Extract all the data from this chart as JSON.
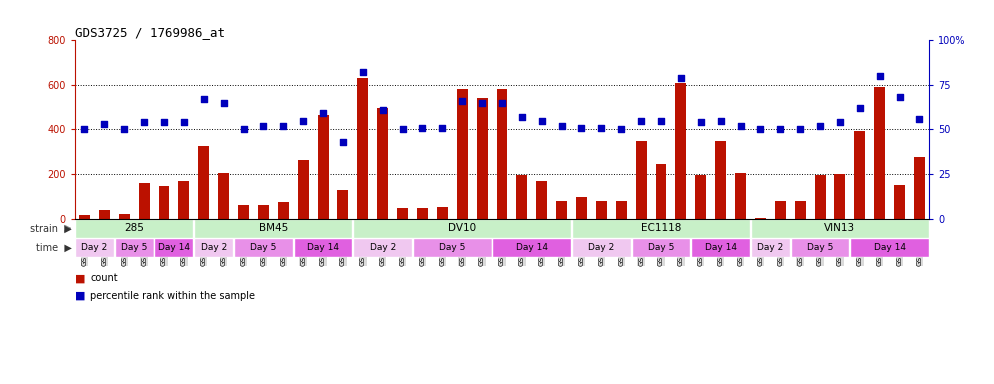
{
  "title": "GDS3725 / 1769986_at",
  "samples": [
    "GSM291115",
    "GSM291116",
    "GSM291117",
    "GSM291140",
    "GSM291141",
    "GSM291142",
    "GSM291000",
    "GSM291001",
    "GSM291462",
    "GSM291523",
    "GSM291524",
    "GSM291555",
    "GSM296856",
    "GSM296857",
    "GSM290992",
    "GSM290993",
    "GSM290989",
    "GSM290990",
    "GSM290991",
    "GSM291538",
    "GSM291539",
    "GSM291540",
    "GSM290994",
    "GSM290995",
    "GSM290996",
    "GSM291435",
    "GSM291439",
    "GSM291445",
    "GSM291554",
    "GSM296858",
    "GSM296859",
    "GSM290997",
    "GSM290998",
    "GSM290999",
    "GSM290901",
    "GSM290902",
    "GSM290903",
    "GSM291525",
    "GSM296860",
    "GSM296861",
    "GSM291002",
    "GSM291003",
    "GSM292045"
  ],
  "counts": [
    18,
    38,
    22,
    160,
    148,
    170,
    325,
    205,
    60,
    60,
    75,
    265,
    465,
    130,
    630,
    495,
    48,
    48,
    50,
    580,
    540,
    580,
    195,
    170,
    80,
    95,
    80,
    80,
    350,
    245,
    610,
    195,
    350,
    205,
    5,
    80,
    80,
    195,
    200,
    395,
    590,
    150,
    275
  ],
  "percentiles": [
    50,
    53,
    50,
    54,
    54,
    54,
    67,
    65,
    50,
    52,
    52,
    55,
    59,
    43,
    82,
    61,
    50,
    51,
    51,
    66,
    65,
    65,
    57,
    55,
    52,
    51,
    51,
    50,
    55,
    55,
    79,
    54,
    55,
    52,
    50,
    50,
    50,
    52,
    54,
    62,
    80,
    68,
    56
  ],
  "ylim_left": [
    0,
    800
  ],
  "ylim_right": [
    0,
    100
  ],
  "yticks_left": [
    0,
    200,
    400,
    600,
    800
  ],
  "yticks_right": [
    0,
    25,
    50,
    75,
    100
  ],
  "ytick_right_labels": [
    "0",
    "25",
    "50",
    "75",
    "100%"
  ],
  "bar_color": "#BB1100",
  "dot_color": "#0000BB",
  "bg_color": "#FFFFFF",
  "strain_color": "#C8F0C8",
  "strains": [
    {
      "label": "285",
      "start": 0,
      "end": 5
    },
    {
      "label": "BM45",
      "start": 6,
      "end": 13
    },
    {
      "label": "DV10",
      "start": 14,
      "end": 24
    },
    {
      "label": "EC1118",
      "start": 25,
      "end": 33
    },
    {
      "label": "VIN13",
      "start": 34,
      "end": 42
    }
  ],
  "time_blocks": [
    {
      "start": 0,
      "end": 1,
      "label": "Day 2",
      "color": "#F0C8F0"
    },
    {
      "start": 2,
      "end": 3,
      "label": "Day 5",
      "color": "#E890E8"
    },
    {
      "start": 4,
      "end": 5,
      "label": "Day 14",
      "color": "#E060E0"
    },
    {
      "start": 6,
      "end": 7,
      "label": "Day 2",
      "color": "#F0C8F0"
    },
    {
      "start": 8,
      "end": 10,
      "label": "Day 5",
      "color": "#E890E8"
    },
    {
      "start": 11,
      "end": 13,
      "label": "Day 14",
      "color": "#E060E0"
    },
    {
      "start": 14,
      "end": 16,
      "label": "Day 2",
      "color": "#F0C8F0"
    },
    {
      "start": 17,
      "end": 20,
      "label": "Day 5",
      "color": "#E890E8"
    },
    {
      "start": 21,
      "end": 24,
      "label": "Day 14",
      "color": "#E060E0"
    },
    {
      "start": 25,
      "end": 27,
      "label": "Day 2",
      "color": "#F0C8F0"
    },
    {
      "start": 28,
      "end": 30,
      "label": "Day 5",
      "color": "#E890E8"
    },
    {
      "start": 31,
      "end": 33,
      "label": "Day 14",
      "color": "#E060E0"
    },
    {
      "start": 34,
      "end": 35,
      "label": "Day 2",
      "color": "#F0C8F0"
    },
    {
      "start": 36,
      "end": 38,
      "label": "Day 5",
      "color": "#E890E8"
    },
    {
      "start": 39,
      "end": 42,
      "label": "Day 14",
      "color": "#E060E0"
    }
  ]
}
